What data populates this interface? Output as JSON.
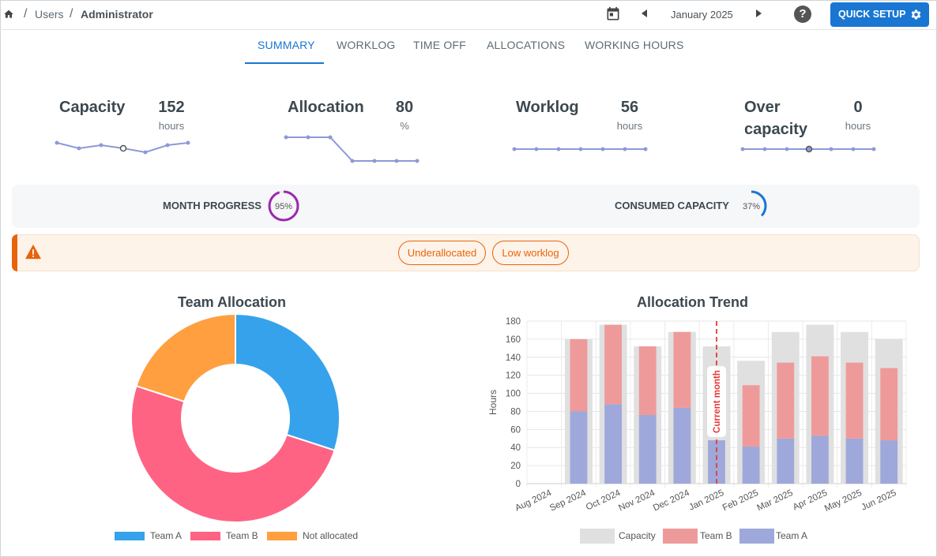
{
  "breadcrumb": {
    "items": [
      "Users",
      "Administrator"
    ]
  },
  "header": {
    "month": "January 2025",
    "quick_setup_label": "QUICK SETUP",
    "help_label": "?"
  },
  "tabs": [
    "SUMMARY",
    "WORKLOG",
    "TIME OFF",
    "ALLOCATIONS",
    "WORKING HOURS"
  ],
  "metrics": {
    "capacity": {
      "label": "Capacity",
      "value": "152",
      "unit": "hours"
    },
    "allocation": {
      "label": "Allocation",
      "value": "80",
      "unit": "%"
    },
    "worklog": {
      "label": "Worklog",
      "value": "56",
      "unit": "hours"
    },
    "overcapacity": {
      "label_line1": "Over",
      "label_line2": "capacity",
      "value": "0",
      "unit": "hours"
    }
  },
  "progress": {
    "month_label": "MONTH PROGRESS",
    "month_value": "95%",
    "month_fraction": 0.95,
    "consumed_label": "CONSUMED CAPACITY",
    "consumed_value": "37%",
    "consumed_fraction": 0.37
  },
  "warnings": {
    "chips": [
      "Underallocated",
      "Low worklog"
    ]
  },
  "colors": {
    "accent": "#1976d2",
    "warning": "#e8640c",
    "month_ring": "#9c27b0",
    "spark": "#8e99d6"
  },
  "chart_data": [
    {
      "type": "pie",
      "title": "Team Allocation",
      "categories": [
        "Team A",
        "Team B",
        "Not allocated"
      ],
      "values": [
        30,
        50,
        20
      ],
      "colors": [
        "#36a2eb",
        "#ff6384",
        "#ff9f40"
      ],
      "donut": true,
      "legend": "bottom"
    },
    {
      "type": "bar",
      "title": "Allocation Trend",
      "categories": [
        "Aug 2024",
        "Sep 2024",
        "Oct 2024",
        "Nov 2024",
        "Dec 2024",
        "Jan 2025",
        "Feb 2025",
        "Mar 2025",
        "Apr 2025",
        "May 2025",
        "Jun 2025"
      ],
      "series": [
        {
          "name": "Capacity",
          "values": [
            0,
            160,
            176,
            152,
            168,
            152,
            136,
            168,
            176,
            168,
            160
          ],
          "color": "#e0e0e0"
        },
        {
          "name": "Team B",
          "values": [
            0,
            80,
            88,
            76,
            84,
            0,
            68,
            84,
            88,
            84,
            80
          ],
          "color": "#ef9a9a"
        },
        {
          "name": "Team A",
          "values": [
            0,
            80,
            88,
            76,
            84,
            48,
            41,
            50,
            53,
            50,
            48
          ],
          "color": "#9fa8da"
        }
      ],
      "ylabel": "Hours",
      "ylim": [
        0,
        180
      ],
      "yticks": [
        0,
        20,
        40,
        60,
        80,
        100,
        120,
        140,
        160,
        180
      ],
      "annotation": {
        "label": "Current month",
        "category": "Jan 2025",
        "color": "#e53935"
      },
      "grid": true,
      "legend": "bottom"
    }
  ]
}
